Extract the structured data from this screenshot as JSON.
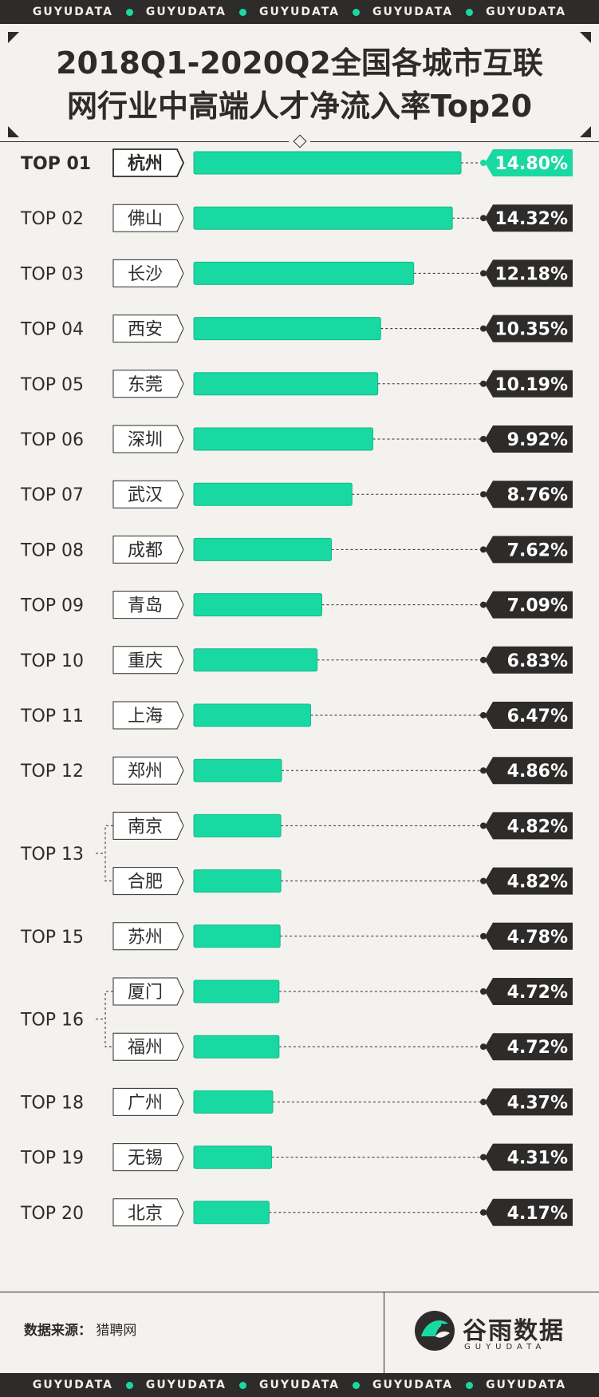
{
  "ticker": [
    "GUYUDATA",
    "GUYUDATA",
    "GUYUDATA",
    "GUYUDATA",
    "GUYUDATA"
  ],
  "title": {
    "line1": "2018Q1-2020Q2全国各城市互联",
    "line2": "网行业中高端人才净流入率Top20"
  },
  "colors": {
    "accent": "#19d9a2",
    "dark": "#2e2c2b",
    "paper": "#f4f2ee"
  },
  "chart_data": {
    "type": "bar",
    "orientation": "horizontal",
    "unit": "%",
    "rows": [
      {
        "rank": "TOP 01",
        "city": "杭州",
        "value": 14.8,
        "label": "14.80%"
      },
      {
        "rank": "TOP 02",
        "city": "佛山",
        "value": 14.32,
        "label": "14.32%"
      },
      {
        "rank": "TOP 03",
        "city": "长沙",
        "value": 12.18,
        "label": "12.18%"
      },
      {
        "rank": "TOP 04",
        "city": "西安",
        "value": 10.35,
        "label": "10.35%"
      },
      {
        "rank": "TOP 05",
        "city": "东莞",
        "value": 10.19,
        "label": "10.19%"
      },
      {
        "rank": "TOP 06",
        "city": "深圳",
        "value": 9.92,
        "label": "9.92%"
      },
      {
        "rank": "TOP 07",
        "city": "武汉",
        "value": 8.76,
        "label": "8.76%"
      },
      {
        "rank": "TOP 08",
        "city": "成都",
        "value": 7.62,
        "label": "7.62%"
      },
      {
        "rank": "TOP 09",
        "city": "青岛",
        "value": 7.09,
        "label": "7.09%"
      },
      {
        "rank": "TOP 10",
        "city": "重庆",
        "value": 6.83,
        "label": "6.83%"
      },
      {
        "rank": "TOP 11",
        "city": "上海",
        "value": 6.47,
        "label": "6.47%"
      },
      {
        "rank": "TOP 12",
        "city": "郑州",
        "value": 4.86,
        "label": "4.86%"
      },
      {
        "rank": "TOP 13",
        "city": "南京",
        "value": 4.82,
        "label": "4.82%"
      },
      {
        "rank": "",
        "city": "合肥",
        "value": 4.82,
        "label": "4.82%"
      },
      {
        "rank": "TOP 15",
        "city": "苏州",
        "value": 4.78,
        "label": "4.78%"
      },
      {
        "rank": "TOP 16",
        "city": "厦门",
        "value": 4.72,
        "label": "4.72%"
      },
      {
        "rank": "",
        "city": "福州",
        "value": 4.72,
        "label": "4.72%"
      },
      {
        "rank": "TOP 18",
        "city": "广州",
        "value": 4.37,
        "label": "4.37%"
      },
      {
        "rank": "TOP 19",
        "city": "无锡",
        "value": 4.31,
        "label": "4.31%"
      },
      {
        "rank": "TOP 20",
        "city": "北京",
        "value": 4.17,
        "label": "4.17%"
      }
    ]
  },
  "footer": {
    "source_label": "数据来源：",
    "source_value": "猎聘网",
    "logo_text": "谷雨数据",
    "logo_sub": "GUYUDATA"
  }
}
